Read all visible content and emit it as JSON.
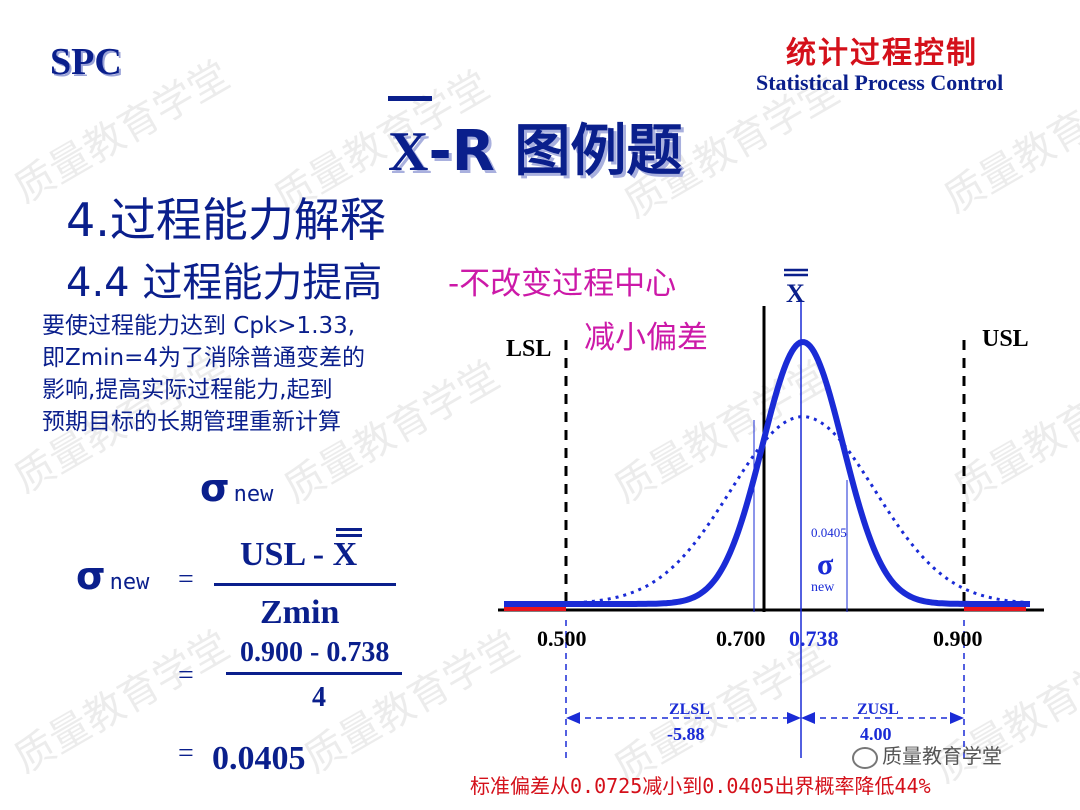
{
  "header": {
    "logo": "SPC",
    "title_cn": "统计过程控制",
    "title_en": "Statistical Process Control"
  },
  "slide": {
    "title_symbol": "X",
    "title_rest": "-R 图例题",
    "heading1": "4.过程能力解释",
    "heading2": "4.4 过程能力提高",
    "subtitle_line1": "-不改变过程中心",
    "subtitle_line2": "减小偏差",
    "paragraph": [
      "要使过程能力达到 Cpk>1.33,",
      "即Zmin=4为了消除普通变差的",
      "影响,提高实际过程能力,起到",
      "预期目标的长期管理重新计算"
    ],
    "sigma_label": "σ",
    "new_label": "new",
    "eq": "=",
    "formula_numerator": "USL - X",
    "formula_denominator": "Zmin",
    "calc_numerator": "0.900 - 0.738",
    "calc_denominator": "4",
    "result": "0.0405",
    "footer_note": "标准偏差从0.0725减小到0.0405出界概率降低44%",
    "watermark": "质量教育学堂",
    "wechat_handle": "质量教育学堂"
  },
  "chart_labels": {
    "lsl": "LSL",
    "usl": "USL",
    "xbar": "X",
    "sigma_value": "0.0405",
    "sigma_symbol": "σ",
    "sigma_sub": "new",
    "ticks": [
      "0.500",
      "0.700",
      "0.738",
      "0.900"
    ],
    "zlsl_label": "ZLSL",
    "zlsl_value": "-5.88",
    "zusl_label": "ZUSL",
    "zusl_value": "4.00"
  },
  "colors": {
    "navy": "#0a1f8c",
    "curve": "#1a2bd6",
    "tail": "#e8141d",
    "note": "#d4101a",
    "magenta": "#cc19a8"
  },
  "chart_data": {
    "type": "line",
    "lsl": 0.5,
    "usl": 0.9,
    "mean": 0.738,
    "target_line": 0.7,
    "series": [
      {
        "sigma": 0.0405,
        "style": "solid"
      },
      {
        "sigma": 0.0725,
        "style": "dotted"
      }
    ],
    "z_lsl": -5.88,
    "z_usl": 4.0
  }
}
